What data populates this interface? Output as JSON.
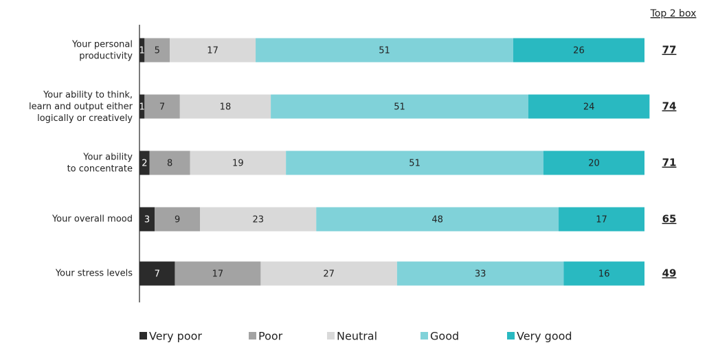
{
  "chart_data": {
    "type": "bar",
    "orientation": "horizontal",
    "stacked": true,
    "categories": [
      "Your personal\nproductivity",
      "Your ability to think,\nlearn and output either\nlogically or creatively",
      "Your ability\nto concentrate",
      "Your overall mood",
      "Your stress levels"
    ],
    "series": [
      {
        "name": "Very poor",
        "color": "#2b2b2b",
        "label_color": "#ffffff",
        "values": [
          1,
          1,
          2,
          3,
          7
        ]
      },
      {
        "name": "Poor",
        "color": "#a3a3a3",
        "label_color": "#222222",
        "values": [
          5,
          7,
          8,
          9,
          17
        ]
      },
      {
        "name": "Neutral",
        "color": "#d9d9d9",
        "label_color": "#222222",
        "values": [
          17,
          18,
          19,
          23,
          27
        ]
      },
      {
        "name": "Good",
        "color": "#80d2d9",
        "label_color": "#222222",
        "values": [
          51,
          51,
          51,
          48,
          33
        ]
      },
      {
        "name": "Very good",
        "color": "#29b9c1",
        "label_color": "#222222",
        "values": [
          26,
          24,
          20,
          17,
          16
        ]
      }
    ],
    "xlim": [
      0,
      100
    ],
    "top2box": {
      "title": "Top 2 box",
      "values": [
        77,
        74,
        71,
        65,
        49
      ]
    }
  }
}
